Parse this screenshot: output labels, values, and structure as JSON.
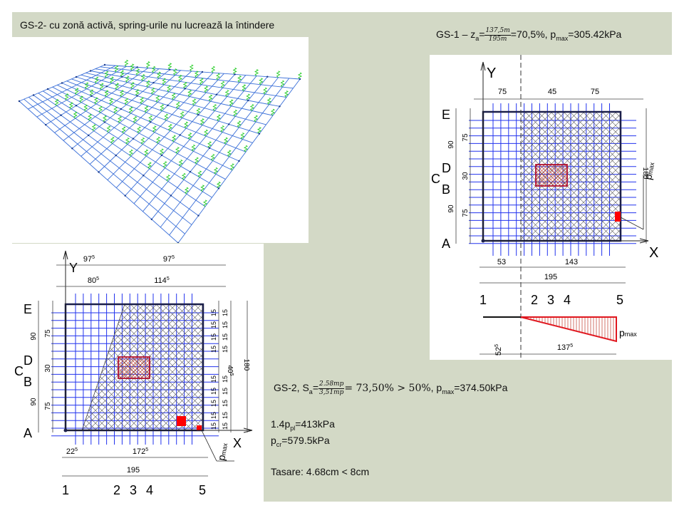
{
  "title_3d": "GS-2- cu zonă activă, spring-urile nu lucrează la întindere",
  "gs1": {
    "prefix": "GS-1 – z",
    "sub": "a",
    "eq": "=",
    "frac_num": "137,5m",
    "frac_den": "195m",
    "result": "=70,5%, p",
    "pmax_sub": "max",
    "pmax_val": "=305.42kPa"
  },
  "gs2": {
    "prefix": "GS-2, S",
    "sub": "a",
    "eq": "=",
    "frac_num": "2.58mp",
    "frac_den": "3,51mp",
    "result": "= 73,50% > 50%",
    "pmax_pre": ", p",
    "pmax_sub": "max",
    "pmax_val": "=374.50kPa"
  },
  "lines": {
    "ppl_pre": "1.4p",
    "ppl_sub": "pl",
    "ppl_val": "=413kPa",
    "pcr_pre": "p",
    "pcr_sub": "cr",
    "pcr_val": "=579.5kPa",
    "tasare": "Tasare: 4.68cm < 8cm"
  },
  "plan1": {
    "axis_y": "Y",
    "axis_x": "X",
    "rows": [
      "E",
      "D",
      "C",
      "B",
      "A"
    ],
    "cols": [
      "1",
      "2",
      "3",
      "4",
      "5"
    ],
    "dim_top": [
      "75",
      "45",
      "75"
    ],
    "dim_left_outer": [
      "90",
      "30",
      "90"
    ],
    "dim_left_inner": [
      "75",
      "75"
    ],
    "dim_right": "180",
    "dim_bottom1": [
      "53",
      "143"
    ],
    "dim_bottom2": "195",
    "pmax": "p",
    "pmax_sub": "max",
    "dia_left": "52",
    "dia_left_sup": "5",
    "dia_right": "137",
    "dia_right_sup": "5"
  },
  "plan2": {
    "axis_y": "Y",
    "axis_x": "X",
    "rows": [
      "E",
      "D",
      "C",
      "B",
      "A"
    ],
    "cols": [
      "1",
      "2",
      "3",
      "4",
      "5"
    ],
    "dim_top1": [
      "97",
      "97"
    ],
    "dim_top1_sup": "5",
    "dim_top2": [
      "80",
      "114"
    ],
    "dim_top2_sup": "5",
    "dim_left_outer": [
      "90",
      "30",
      "90"
    ],
    "dim_left_inner": [
      "75",
      "75"
    ],
    "dim_right": "180",
    "dim_right_small": "15",
    "dim_right_mid": "40",
    "dim_right_mid_sup": "5",
    "dim_bottom1": [
      "22",
      "172"
    ],
    "dim_bottom1_sup": "5",
    "dim_bottom2": "195",
    "pmax": "p",
    "pmax_sub": "max"
  },
  "colors": {
    "background": "#d3d9c6",
    "grid": "#2233ee",
    "mesh3d": "#3a6fd8",
    "springs": "#22cc22",
    "column": "#c0392b",
    "pmax": "#ff0000"
  }
}
